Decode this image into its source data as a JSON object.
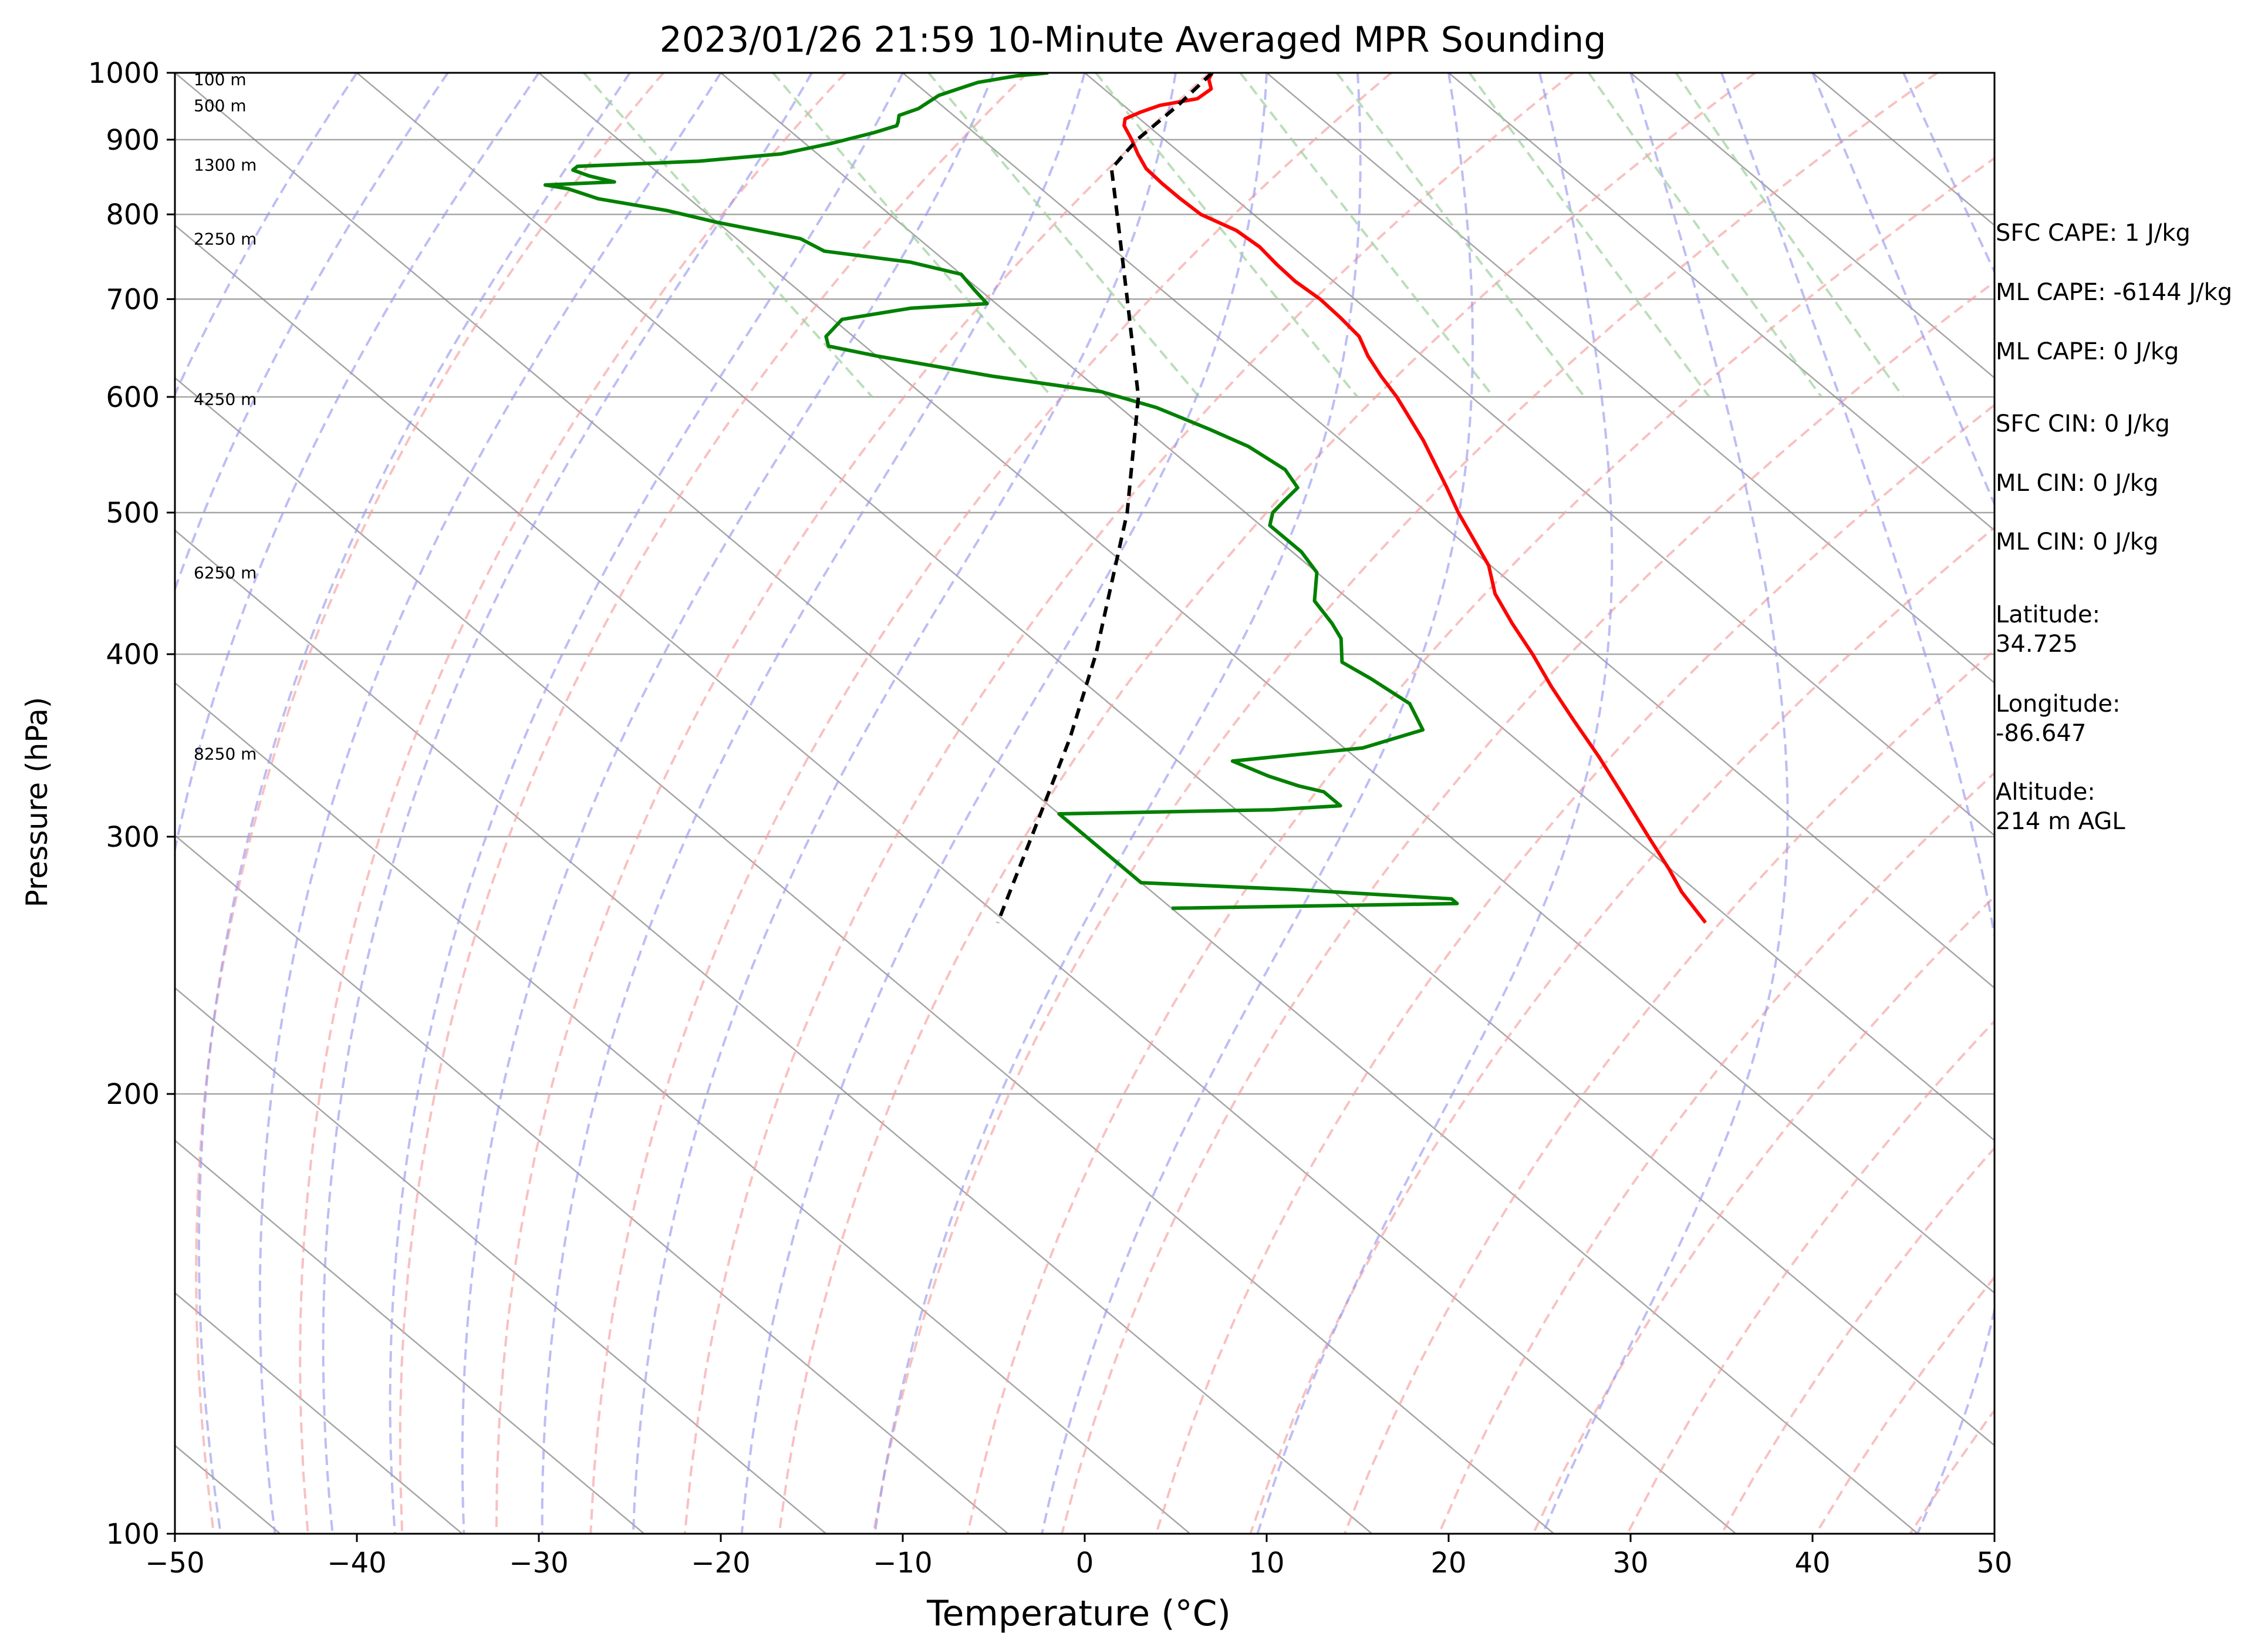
{
  "chart_data": {
    "type": "line",
    "title": "2023/01/26 21:59 10-Minute Averaged MPR Sounding",
    "xlabel": "Temperature (°C)",
    "ylabel": "Pressure (hPa)",
    "xlim": [
      -50,
      50
    ],
    "ylim": [
      1000,
      100
    ],
    "y_scale": "log",
    "grid": true,
    "x_ticks": [
      "−50",
      "−40",
      "−30",
      "−20",
      "−10",
      "0",
      "10",
      "20",
      "30",
      "40",
      "50"
    ],
    "y_ticks": [
      "1000",
      "900",
      "800",
      "700",
      "600",
      "500",
      "400",
      "300",
      "200",
      "100"
    ],
    "y_tick_values": [
      1000,
      900,
      800,
      700,
      600,
      500,
      400,
      300,
      200,
      100
    ],
    "colors": {
      "temperature": "#ff0000",
      "dewpoint": "#008000",
      "parcel": "#000000",
      "dry_adiabat": "#f4a0a0",
      "moist_adiabat": "#9a9af0",
      "mixing_ratio": "#9cd09c",
      "isotherm": "#7f7f7f",
      "isobar": "#7f7f7f"
    },
    "series": [
      {
        "values": [
          [
            1000,
            7.0
          ],
          [
            990,
            6.4
          ],
          [
            975,
            5.9
          ],
          [
            960,
            4.5
          ],
          [
            950,
            2.0
          ],
          [
            940,
            0.5
          ],
          [
            930,
            -0.8
          ],
          [
            920,
            -1.3
          ],
          [
            900,
            -1.8
          ],
          [
            880,
            -2.4
          ],
          [
            860,
            -2.9
          ],
          [
            840,
            -3.0
          ],
          [
            820,
            -3.0
          ],
          [
            800,
            -2.9
          ],
          [
            780,
            -2.0
          ],
          [
            760,
            -1.8
          ],
          [
            740,
            -2.0
          ],
          [
            720,
            -2.1
          ],
          [
            700,
            -1.9
          ],
          [
            680,
            -2.0
          ],
          [
            660,
            -2.2
          ],
          [
            640,
            -3.0
          ],
          [
            620,
            -3.6
          ],
          [
            600,
            -4.1
          ],
          [
            560,
            -5.5
          ],
          [
            520,
            -7.3
          ],
          [
            500,
            -8.3
          ],
          [
            460,
            -10.1
          ],
          [
            440,
            -11.6
          ],
          [
            420,
            -12.6
          ],
          [
            400,
            -13.5
          ],
          [
            380,
            -14.6
          ],
          [
            360,
            -15.6
          ],
          [
            340,
            -16.6
          ],
          [
            320,
            -17.8
          ],
          [
            300,
            -19.1
          ],
          [
            285,
            -20.1
          ],
          [
            275,
            -20.9
          ],
          [
            262,
            -21.6
          ]
        ]
      },
      {
        "values": [
          [
            1000,
            -2.0
          ],
          [
            995,
            -4.0
          ],
          [
            985,
            -6.5
          ],
          [
            975,
            -8.0
          ],
          [
            965,
            -9.5
          ],
          [
            955,
            -10.5
          ],
          [
            945,
            -11.5
          ],
          [
            935,
            -13.0
          ],
          [
            925,
            -13.5
          ],
          [
            920,
            -13.8
          ],
          [
            910,
            -15.5
          ],
          [
            895,
            -18.5
          ],
          [
            880,
            -22.0
          ],
          [
            870,
            -27.0
          ],
          [
            863,
            -34.0
          ],
          [
            858,
            -34.5
          ],
          [
            850,
            -34.0
          ],
          [
            842,
            -33.0
          ],
          [
            838,
            -37.0
          ],
          [
            833,
            -36.0
          ],
          [
            820,
            -35.0
          ],
          [
            805,
            -32.0
          ],
          [
            790,
            -30.0
          ],
          [
            770,
            -26.5
          ],
          [
            755,
            -26.0
          ],
          [
            742,
            -22.0
          ],
          [
            728,
            -20.0
          ],
          [
            710,
            -20.3
          ],
          [
            695,
            -20.5
          ],
          [
            690,
            -25.0
          ],
          [
            678,
            -29.5
          ],
          [
            660,
            -31.5
          ],
          [
            650,
            -32.0
          ],
          [
            640,
            -30.0
          ],
          [
            620,
            -25.0
          ],
          [
            605,
            -20.0
          ],
          [
            590,
            -18.0
          ],
          [
            570,
            -16.5
          ],
          [
            555,
            -15.5
          ],
          [
            535,
            -15.0
          ],
          [
            520,
            -15.5
          ],
          [
            510,
            -17.0
          ],
          [
            500,
            -18.5
          ],
          [
            490,
            -19.5
          ],
          [
            470,
            -19.5
          ],
          [
            455,
            -20.0
          ],
          [
            435,
            -22.0
          ],
          [
            420,
            -22.5
          ],
          [
            410,
            -23.0
          ],
          [
            395,
            -24.5
          ],
          [
            385,
            -24.0
          ],
          [
            370,
            -23.5
          ],
          [
            355,
            -24.5
          ],
          [
            345,
            -29.0
          ],
          [
            338,
            -37.0
          ],
          [
            330,
            -36.0
          ],
          [
            325,
            -35.0
          ],
          [
            322,
            -34.0
          ],
          [
            318,
            -34.0
          ],
          [
            315,
            -34.0
          ],
          [
            313,
            -38.0
          ],
          [
            311,
            -50.0
          ],
          [
            279,
            -50.0
          ],
          [
            276,
            -42.0
          ],
          [
            272,
            -34.0
          ],
          [
            270,
            -34.0
          ],
          [
            268,
            -50.0
          ]
        ]
      },
      {
        "values": [
          [
            1000,
            7.0
          ],
          [
            950,
            3.0
          ],
          [
            900,
            -1.5
          ],
          [
            860,
            -4.8
          ],
          [
            800,
            -7.5
          ],
          [
            700,
            -12.5
          ],
          [
            600,
            -18.3
          ],
          [
            500,
            -26.5
          ],
          [
            400,
            -37.5
          ],
          [
            350,
            -44.5
          ],
          [
            300,
            -53.0
          ],
          [
            262,
            -60.5
          ]
        ]
      }
    ],
    "annotations": {
      "height_labels": [
        {
          "text": "100 m",
          "pressure": 990
        },
        {
          "text": "500 m",
          "pressure": 950
        },
        {
          "text": "1300 m",
          "pressure": 865
        },
        {
          "text": "2250 m",
          "pressure": 770
        },
        {
          "text": "4250 m",
          "pressure": 598
        },
        {
          "text": "6250 m",
          "pressure": 455
        },
        {
          "text": "8250 m",
          "pressure": 342
        }
      ]
    },
    "reference_lines": {
      "dry_adiabats_theta_K": [
        250,
        260,
        270,
        280,
        290,
        300,
        310,
        320,
        330,
        340,
        350,
        360,
        370,
        380,
        390,
        400,
        410,
        420,
        430,
        440,
        450
      ],
      "moist_adiabats_start_C": [
        -40,
        -35,
        -30,
        -25,
        -20,
        -15,
        -10,
        -5,
        0,
        5,
        10,
        15,
        20,
        25,
        30,
        35,
        40,
        45
      ],
      "mixing_ratio_g_kg": [
        0.4,
        1,
        2,
        4,
        7,
        10,
        16,
        24,
        32
      ]
    }
  },
  "side_panel": {
    "sfc_cape": "SFC CAPE: 1 J/kg",
    "ml_cape_1": "ML CAPE: -6144 J/kg",
    "ml_cape_2": "ML CAPE: 0 J/kg",
    "sfc_cin": "SFC CIN: 0 J/kg",
    "ml_cin_1": "ML CIN: 0 J/kg",
    "ml_cin_2": "ML CIN: 0 J/kg",
    "latitude": "Latitude:\n34.725",
    "longitude": "Longitude:\n-86.647",
    "altitude": "Altitude:\n214 m AGL"
  }
}
